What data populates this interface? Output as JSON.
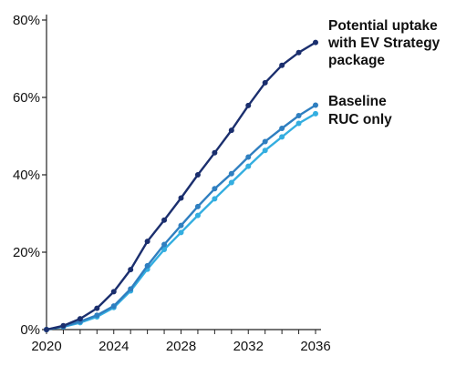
{
  "chart_data": {
    "type": "line",
    "title": "",
    "xlabel": "",
    "ylabel": "",
    "xlim": [
      2020,
      2036
    ],
    "ylim": [
      0,
      80
    ],
    "x_ticks": [
      "2020",
      "2024",
      "2028",
      "2032",
      "2036"
    ],
    "y_ticks": [
      "0%",
      "20%",
      "40%",
      "60%",
      "80%"
    ],
    "grid": false,
    "legend": "direct labels at line ends",
    "x": [
      2020,
      2021,
      2022,
      2023,
      2024,
      2025,
      2026,
      2027,
      2028,
      2029,
      2030,
      2031,
      2032,
      2033,
      2034,
      2035,
      2036
    ],
    "series": [
      {
        "name": "Potential uptake with EV Strategy package",
        "label_lines": [
          "Potential uptake",
          "with EV Strategy",
          "package"
        ],
        "color": "#1b2f6e",
        "values": [
          0,
          1,
          2.8,
          5.5,
          9.8,
          15.5,
          22.8,
          28.3,
          34,
          40,
          45.7,
          51.5,
          57.9,
          63.8,
          68.3,
          71.6,
          74.2
        ]
      },
      {
        "name": "Baseline",
        "label_lines": [
          "Baseline"
        ],
        "color": "#2f7fc0",
        "values": [
          0,
          0.8,
          2.1,
          3.7,
          6.1,
          10.5,
          16.5,
          22,
          26.9,
          31.8,
          36.4,
          40.3,
          44.6,
          48.6,
          52,
          55.3,
          58
        ]
      },
      {
        "name": "RUC only",
        "label_lines": [
          "RUC only"
        ],
        "color": "#34aee0",
        "values": [
          0,
          0.7,
          1.8,
          3.3,
          5.7,
          10,
          15.6,
          20.7,
          25.1,
          29.5,
          33.8,
          38,
          42.2,
          46.3,
          49.8,
          53.3,
          55.8
        ]
      }
    ]
  }
}
